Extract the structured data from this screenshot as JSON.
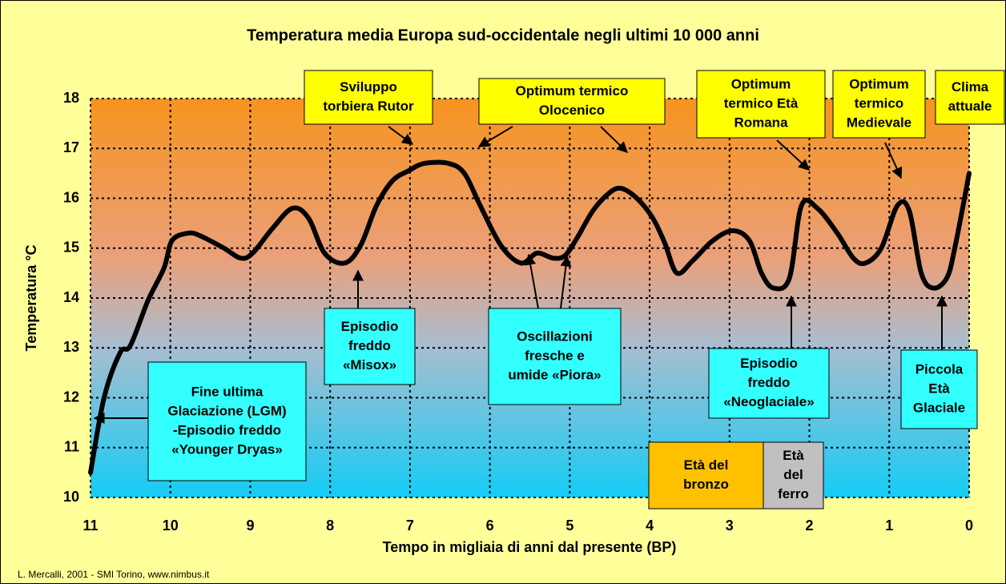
{
  "chart_data": {
    "type": "line",
    "title": "Temperatura media Europa sud-occidentale negli ultimi 10 000 anni",
    "xlabel": "Tempo in migliaia di anni dal presente (BP)",
    "ylabel": "Temperatura °C",
    "source": "L. Mercalli, 2001 - SMI Torino, www.nimbus.it",
    "xlim": [
      11,
      0
    ],
    "ylim": [
      10,
      18
    ],
    "xticks": [
      11,
      10,
      9,
      8,
      7,
      6,
      5,
      4,
      3,
      2,
      1,
      0
    ],
    "yticks": [
      10,
      11,
      12,
      13,
      14,
      15,
      16,
      17,
      18
    ],
    "grid": true,
    "color": "#000000",
    "x": [
      11,
      10.83,
      10.63,
      10.5,
      10.28,
      10.08,
      9.98,
      9.78,
      9.63,
      9.33,
      9.12,
      8.97,
      8.72,
      8.47,
      8.27,
      8.07,
      7.82,
      7.62,
      7.42,
      7.22,
      7.02,
      6.82,
      6.52,
      6.32,
      6.12,
      5.86,
      5.61,
      5.41,
      5.21,
      5.06,
      4.91,
      4.71,
      4.51,
      4.36,
      4.16,
      3.96,
      3.81,
      3.66,
      3.46,
      3.21,
      2.96,
      2.75,
      2.6,
      2.45,
      2.25,
      2.1,
      1.9,
      1.65,
      1.45,
      1.3,
      1.1,
      0.9,
      0.75,
      0.6,
      0.45,
      0.28,
      0.18,
      0
    ],
    "values": [
      10.5,
      12.0,
      12.9,
      13.05,
      13.95,
      14.6,
      15.15,
      15.3,
      15.25,
      15.0,
      14.8,
      14.9,
      15.4,
      15.8,
      15.6,
      14.9,
      14.7,
      15.05,
      15.85,
      16.35,
      16.55,
      16.7,
      16.7,
      16.5,
      15.85,
      15.05,
      14.7,
      14.9,
      14.8,
      14.85,
      15.2,
      15.75,
      16.1,
      16.2,
      16.0,
      15.6,
      15.1,
      14.5,
      14.75,
      15.15,
      15.35,
      15.15,
      14.5,
      14.2,
      14.4,
      15.85,
      15.8,
      15.3,
      14.8,
      14.7,
      15.0,
      15.85,
      15.75,
      14.5,
      14.2,
      14.4,
      15.0,
      16.5
    ],
    "annotations": [
      {
        "lines": [
          "Sviluppo",
          "torbiera Rutor"
        ],
        "color": "#ffff00"
      },
      {
        "lines": [
          "Optimum termico",
          "Olocenico"
        ],
        "color": "#ffff00"
      },
      {
        "lines": [
          "Optimum",
          "termico Età",
          "Romana"
        ],
        "color": "#ffff00"
      },
      {
        "lines": [
          "Optimum",
          "termico",
          "Medievale"
        ],
        "color": "#ffff00"
      },
      {
        "lines": [
          "Clima",
          "attuale"
        ],
        "color": "#ffff00"
      },
      {
        "lines": [
          "Episodio",
          "freddo",
          "«Misox»"
        ],
        "color": "#33ffff"
      },
      {
        "lines": [
          "Oscillazioni",
          "fresche e",
          "umide  «Piora»"
        ],
        "color": "#33ffff"
      },
      {
        "lines": [
          "Episodio",
          "freddo",
          "«Neoglaciale»"
        ],
        "color": "#33ffff"
      },
      {
        "lines": [
          "Piccola",
          "Età",
          "Glaciale"
        ],
        "color": "#33ffff"
      },
      {
        "lines": [
          "Fine ultima",
          "Glaciazione (LGM)",
          "-Episodio freddo",
          "«Younger Dryas»"
        ],
        "color": "#33ffff"
      },
      {
        "lines": [
          "Età del",
          "bronzo"
        ],
        "color": "#ffc000"
      },
      {
        "lines": [
          "Età",
          "del",
          "ferro"
        ],
        "color": "#c0c0c0"
      }
    ]
  }
}
